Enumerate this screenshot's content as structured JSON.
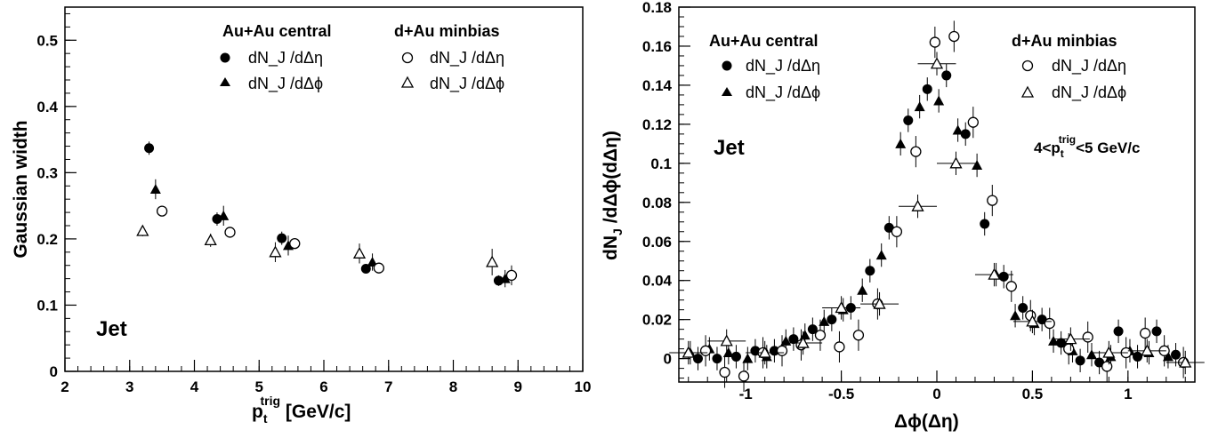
{
  "chart_data": [
    {
      "type": "scatter",
      "xlabel": "p_t^trig [GeV/c]",
      "ylabel": "Gaussian width",
      "xlim": [
        2,
        10
      ],
      "ylim": [
        0,
        0.55
      ],
      "x_ticks": [
        "2",
        "3",
        "4",
        "5",
        "6",
        "7",
        "8",
        "9",
        "10"
      ],
      "y_ticks": [
        "0",
        "0.1",
        "0.2",
        "0.3",
        "0.4",
        "0.5"
      ],
      "annotation": "Jet",
      "legend": {
        "left_header": "Au+Au central",
        "right_header": "d+Au minbias",
        "entries": [
          "dN_J /dΔη",
          "dN_J /dΔϕ",
          "dN_J /dΔη",
          "dN_J /dΔϕ"
        ]
      },
      "series": [
        {
          "name": "Au+Au central dN_J/dΔη",
          "marker": "filled-circle",
          "x": [
            3.3,
            4.35,
            5.35,
            6.65,
            8.7
          ],
          "y": [
            0.337,
            0.23,
            0.201,
            0.155,
            0.137
          ],
          "err": [
            0.01,
            0.01,
            0.01,
            0.007,
            0.008
          ]
        },
        {
          "name": "Au+Au central dN_J/dΔϕ",
          "marker": "filled-triangle",
          "x": [
            3.4,
            4.45,
            5.45,
            6.75,
            8.8
          ],
          "y": [
            0.275,
            0.235,
            0.19,
            0.165,
            0.14
          ],
          "err": [
            0.015,
            0.015,
            0.015,
            0.013,
            0.013
          ]
        },
        {
          "name": "d+Au minbias dN_J/dΔη",
          "marker": "open-circle",
          "x": [
            3.5,
            4.55,
            5.55,
            6.85,
            8.9
          ],
          "y": [
            0.242,
            0.21,
            0.193,
            0.156,
            0.145
          ],
          "err": [
            0.008,
            0.008,
            0.008,
            0.008,
            0.015
          ]
        },
        {
          "name": "d+Au minbias dN_J/dΔϕ",
          "marker": "open-triangle",
          "x": [
            3.2,
            4.25,
            5.25,
            6.55,
            8.6
          ],
          "y": [
            0.212,
            0.198,
            0.18,
            0.178,
            0.165
          ],
          "err": [
            0.008,
            0.01,
            0.015,
            0.015,
            0.02
          ]
        }
      ]
    },
    {
      "type": "scatter",
      "xlabel": "Δϕ(Δη)",
      "ylabel": "dN_J /dΔϕ(dΔη)",
      "xlim": [
        -1.35,
        1.35
      ],
      "ylim": [
        -0.012,
        0.18
      ],
      "x_ticks": [
        "-1",
        "-0.5",
        "0",
        "0.5",
        "1"
      ],
      "y_ticks": [
        "0",
        "0.02",
        "0.04",
        "0.06",
        "0.08",
        "0.1",
        "0.12",
        "0.14",
        "0.16",
        "0.18"
      ],
      "annotation": "Jet",
      "note": "4<p_t^trig<5 GeV/c",
      "legend": {
        "left_header": "Au+Au central",
        "right_header": "d+Au minbias",
        "entries": [
          "dN_J /dΔη",
          "dN_J /dΔϕ",
          "dN_J /dΔη",
          "dN_J /dΔϕ"
        ]
      },
      "series": [
        {
          "name": "Au+Au central dN_J/dΔη",
          "marker": "filled-circle",
          "x": [
            -1.25,
            -1.15,
            -1.05,
            -0.95,
            -0.85,
            -0.75,
            -0.65,
            -0.55,
            -0.45,
            -0.35,
            -0.25,
            -0.15,
            -0.05,
            0.05,
            0.15,
            0.25,
            0.35,
            0.45,
            0.55,
            0.65,
            0.75,
            0.85,
            0.95,
            1.05,
            1.15,
            1.25
          ],
          "y": [
            0.0,
            0.0,
            0.001,
            0.004,
            0.004,
            0.01,
            0.015,
            0.02,
            0.026,
            0.045,
            0.067,
            0.122,
            0.138,
            0.145,
            0.115,
            0.069,
            0.042,
            0.026,
            0.02,
            0.008,
            -0.001,
            -0.002,
            0.014,
            0.001,
            0.014,
            0.002
          ],
          "err": 0.006
        },
        {
          "name": "Au+Au central dN_J/dΔϕ",
          "marker": "filled-triangle",
          "x": [
            -1.29,
            -1.19,
            -1.09,
            -0.99,
            -0.89,
            -0.79,
            -0.69,
            -0.59,
            -0.49,
            -0.39,
            -0.29,
            -0.19,
            -0.09,
            0.01,
            0.11,
            0.21,
            0.31,
            0.41,
            0.51,
            0.61,
            0.71,
            0.81,
            0.91,
            1.01,
            1.11,
            1.21
          ],
          "y": [
            0.003,
            0.005,
            0.003,
            0.0,
            0.001,
            0.009,
            0.012,
            0.019,
            0.025,
            0.035,
            0.053,
            0.11,
            0.129,
            0.132,
            0.117,
            0.099,
            0.043,
            0.022,
            0.018,
            0.009,
            0.004,
            0.002,
            0.001,
            0.004,
            0.003,
            0.001
          ],
          "err": 0.006
        },
        {
          "name": "d+Au minbias dN_J/dΔη",
          "marker": "open-circle",
          "x": [
            -1.21,
            -1.11,
            -1.01,
            -0.91,
            -0.81,
            -0.71,
            -0.61,
            -0.51,
            -0.41,
            -0.31,
            -0.21,
            -0.11,
            -0.01,
            0.09,
            0.19,
            0.29,
            0.39,
            0.49,
            0.59,
            0.69,
            0.79,
            0.89,
            0.99,
            1.09,
            1.19,
            1.29
          ],
          "y": [
            0.004,
            -0.007,
            -0.009,
            0.003,
            0.004,
            0.007,
            0.012,
            0.006,
            0.012,
            0.028,
            0.065,
            0.106,
            0.162,
            0.165,
            0.121,
            0.081,
            0.037,
            0.022,
            0.018,
            0.005,
            0.011,
            -0.004,
            0.003,
            0.013,
            0.004,
            -0.002
          ],
          "err": 0.008
        },
        {
          "name": "d+Au minbias dN_J/dΔϕ",
          "marker": "open-triangle",
          "x": [
            -1.3,
            -1.1,
            -0.9,
            -0.7,
            -0.5,
            -0.3,
            -0.1,
            0.0,
            0.1,
            0.3,
            0.5,
            0.7,
            0.9,
            1.1,
            1.3
          ],
          "y": [
            0.003,
            0.009,
            0.003,
            0.008,
            0.026,
            0.028,
            0.078,
            0.151,
            0.1,
            0.043,
            0.019,
            0.01,
            0.003,
            0.004,
            -0.002
          ],
          "err": 0.006,
          "xerr": 0.1
        }
      ]
    }
  ]
}
